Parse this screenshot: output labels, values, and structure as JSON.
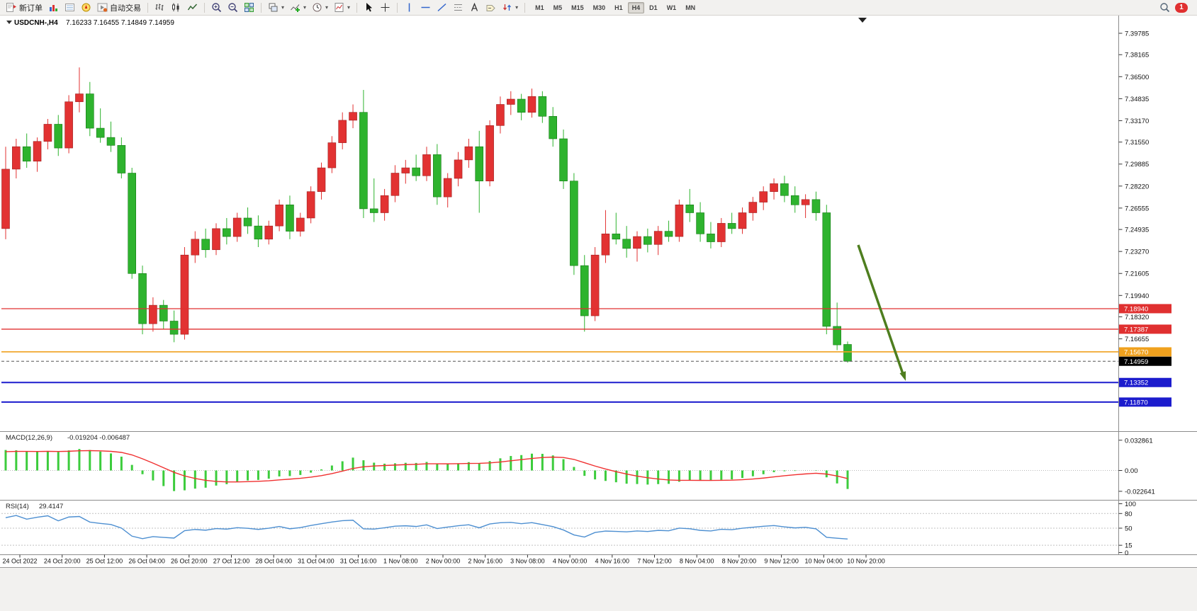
{
  "toolbar": {
    "new_order": "新订单",
    "auto_trading": "自动交易",
    "timeframes": [
      "M1",
      "M5",
      "M15",
      "M30",
      "H1",
      "H4",
      "D1",
      "W1",
      "MN"
    ],
    "active_timeframe": "H4",
    "notification_count": "1"
  },
  "chart_data": [
    {
      "type": "candlestick",
      "symbol_period": "USDCNH-,H4",
      "ohlc_text": "7.16233 7.16455 7.14849 7.14959",
      "open": "7.16233",
      "high": "7.16455",
      "low": "7.14849",
      "close": "7.14959",
      "up_color": "#e23232",
      "down_color": "#2eb32e",
      "y_axis_ticks": [
        "7.39785",
        "7.38165",
        "7.36500",
        "7.34835",
        "7.33170",
        "7.31550",
        "7.29885",
        "7.28220",
        "7.26555",
        "7.24935",
        "7.23270",
        "7.21605",
        "7.19940",
        "7.18320",
        "7.16655"
      ],
      "x_axis_labels": [
        "24 Oct 2022",
        "24 Oct 20:00",
        "25 Oct 12:00",
        "26 Oct 04:00",
        "26 Oct 20:00",
        "27 Oct 12:00",
        "28 Oct 04:00",
        "31 Oct 04:00",
        "31 Oct 16:00",
        "1 Nov 08:00",
        "2 Nov 00:00",
        "2 Nov 16:00",
        "3 Nov 08:00",
        "4 Nov 00:00",
        "4 Nov 16:00",
        "7 Nov 12:00",
        "8 Nov 04:00",
        "8 Nov 20:00",
        "9 Nov 12:00",
        "10 Nov 04:00",
        "10 Nov 20:00"
      ],
      "candles": [
        [
          7.25,
          7.312,
          7.242,
          7.295
        ],
        [
          7.295,
          7.318,
          7.288,
          7.312
        ],
        [
          7.312,
          7.322,
          7.296,
          7.301
        ],
        [
          7.301,
          7.319,
          7.293,
          7.316
        ],
        [
          7.316,
          7.333,
          7.31,
          7.329
        ],
        [
          7.329,
          7.336,
          7.305,
          7.311
        ],
        [
          7.311,
          7.351,
          7.307,
          7.346
        ],
        [
          7.346,
          7.372,
          7.338,
          7.352
        ],
        [
          7.352,
          7.361,
          7.32,
          7.326
        ],
        [
          7.326,
          7.341,
          7.315,
          7.319
        ],
        [
          7.319,
          7.331,
          7.308,
          7.313
        ],
        [
          7.313,
          7.319,
          7.288,
          7.292
        ],
        [
          7.292,
          7.296,
          7.212,
          7.216
        ],
        [
          7.216,
          7.222,
          7.17,
          7.178
        ],
        [
          7.178,
          7.198,
          7.172,
          7.192
        ],
        [
          7.192,
          7.196,
          7.174,
          7.18
        ],
        [
          7.18,
          7.188,
          7.164,
          7.17
        ],
        [
          7.17,
          7.236,
          7.166,
          7.23
        ],
        [
          7.23,
          7.248,
          7.224,
          7.242
        ],
        [
          7.242,
          7.25,
          7.228,
          7.234
        ],
        [
          7.234,
          7.254,
          7.23,
          7.25
        ],
        [
          7.25,
          7.258,
          7.238,
          7.244
        ],
        [
          7.244,
          7.262,
          7.24,
          7.258
        ],
        [
          7.258,
          7.266,
          7.246,
          7.252
        ],
        [
          7.252,
          7.26,
          7.236,
          7.242
        ],
        [
          7.242,
          7.256,
          7.238,
          7.252
        ],
        [
          7.252,
          7.272,
          7.248,
          7.268
        ],
        [
          7.268,
          7.275,
          7.242,
          7.248
        ],
        [
          7.248,
          7.262,
          7.244,
          7.258
        ],
        [
          7.258,
          7.282,
          7.254,
          7.278
        ],
        [
          7.278,
          7.3,
          7.272,
          7.296
        ],
        [
          7.296,
          7.32,
          7.292,
          7.315
        ],
        [
          7.315,
          7.338,
          7.31,
          7.332
        ],
        [
          7.332,
          7.344,
          7.326,
          7.338
        ],
        [
          7.338,
          7.355,
          7.258,
          7.265
        ],
        [
          7.265,
          7.288,
          7.255,
          7.262
        ],
        [
          7.262,
          7.28,
          7.256,
          7.275
        ],
        [
          7.275,
          7.298,
          7.27,
          7.292
        ],
        [
          7.292,
          7.302,
          7.284,
          7.296
        ],
        [
          7.296,
          7.306,
          7.286,
          7.29
        ],
        [
          7.29,
          7.312,
          7.286,
          7.306
        ],
        [
          7.306,
          7.314,
          7.268,
          7.274
        ],
        [
          7.274,
          7.292,
          7.266,
          7.288
        ],
        [
          7.288,
          7.308,
          7.282,
          7.302
        ],
        [
          7.302,
          7.318,
          7.296,
          7.312
        ],
        [
          7.312,
          7.324,
          7.262,
          7.286
        ],
        [
          7.286,
          7.332,
          7.282,
          7.328
        ],
        [
          7.328,
          7.35,
          7.322,
          7.344
        ],
        [
          7.344,
          7.354,
          7.336,
          7.348
        ],
        [
          7.348,
          7.352,
          7.332,
          7.338
        ],
        [
          7.338,
          7.356,
          7.334,
          7.35
        ],
        [
          7.35,
          7.354,
          7.33,
          7.335
        ],
        [
          7.335,
          7.342,
          7.312,
          7.318
        ],
        [
          7.318,
          7.325,
          7.28,
          7.286
        ],
        [
          7.286,
          7.292,
          7.215,
          7.222
        ],
        [
          7.222,
          7.23,
          7.172,
          7.184
        ],
        [
          7.184,
          7.236,
          7.18,
          7.23
        ],
        [
          7.23,
          7.264,
          7.224,
          7.246
        ],
        [
          7.246,
          7.262,
          7.238,
          7.242
        ],
        [
          7.242,
          7.252,
          7.228,
          7.235
        ],
        [
          7.235,
          7.248,
          7.225,
          7.244
        ],
        [
          7.244,
          7.25,
          7.232,
          7.238
        ],
        [
          7.238,
          7.252,
          7.23,
          7.248
        ],
        [
          7.248,
          7.256,
          7.24,
          7.244
        ],
        [
          7.244,
          7.272,
          7.24,
          7.268
        ],
        [
          7.268,
          7.28,
          7.255,
          7.262
        ],
        [
          7.262,
          7.27,
          7.24,
          7.246
        ],
        [
          7.246,
          7.255,
          7.235,
          7.24
        ],
        [
          7.24,
          7.258,
          7.236,
          7.254
        ],
        [
          7.254,
          7.262,
          7.246,
          7.25
        ],
        [
          7.25,
          7.266,
          7.246,
          7.262
        ],
        [
          7.262,
          7.274,
          7.256,
          7.27
        ],
        [
          7.27,
          7.282,
          7.264,
          7.278
        ],
        [
          7.278,
          7.288,
          7.272,
          7.284
        ],
        [
          7.284,
          7.29,
          7.27,
          7.275
        ],
        [
          7.275,
          7.282,
          7.262,
          7.268
        ],
        [
          7.268,
          7.276,
          7.258,
          7.272
        ],
        [
          7.272,
          7.278,
          7.256,
          7.262
        ],
        [
          7.262,
          7.268,
          7.17,
          7.176
        ],
        [
          7.176,
          7.194,
          7.158,
          7.162
        ],
        [
          7.16233,
          7.16455,
          7.14849,
          7.14959
        ]
      ],
      "horizontal_lines": [
        {
          "price": 7.1894,
          "label": "7.18940",
          "color": "#e03030",
          "width": 1.3
        },
        {
          "price": 7.17387,
          "label": "7.17387",
          "color": "#e03030",
          "width": 1.3
        },
        {
          "price": 7.1567,
          "label": "7.15670",
          "color": "#f0a11e",
          "width": 1.6
        },
        {
          "price": 7.13352,
          "label": "7.13352",
          "color": "#1c1ccd",
          "width": 2
        },
        {
          "price": 7.1187,
          "label": "7.11870",
          "color": "#1c1ccd",
          "width": 2
        }
      ],
      "current_price": {
        "value": 7.14959,
        "label": "7.14959",
        "tag_color": "#000000"
      },
      "annotation_arrow": {
        "color": "#4e7e1f",
        "direction": "down"
      }
    },
    {
      "type": "macd",
      "title": "MACD(12,26,9)",
      "values_text": "-0.019204 -0.006487",
      "macd_value": "-0.019204",
      "signal_value": "-0.006487",
      "y_ticks": [
        "0.032861",
        "0.00",
        "-0.022641"
      ],
      "histogram_color": "#3ccc3c",
      "signal_color": "#f03030"
    },
    {
      "type": "rsi",
      "title": "RSI(14)",
      "value_text": "29.4147",
      "y_ticks": [
        "100",
        "80",
        "50",
        "15",
        "0"
      ],
      "levels": [
        80,
        50,
        15
      ],
      "line_color": "#4d8fd1"
    }
  ]
}
